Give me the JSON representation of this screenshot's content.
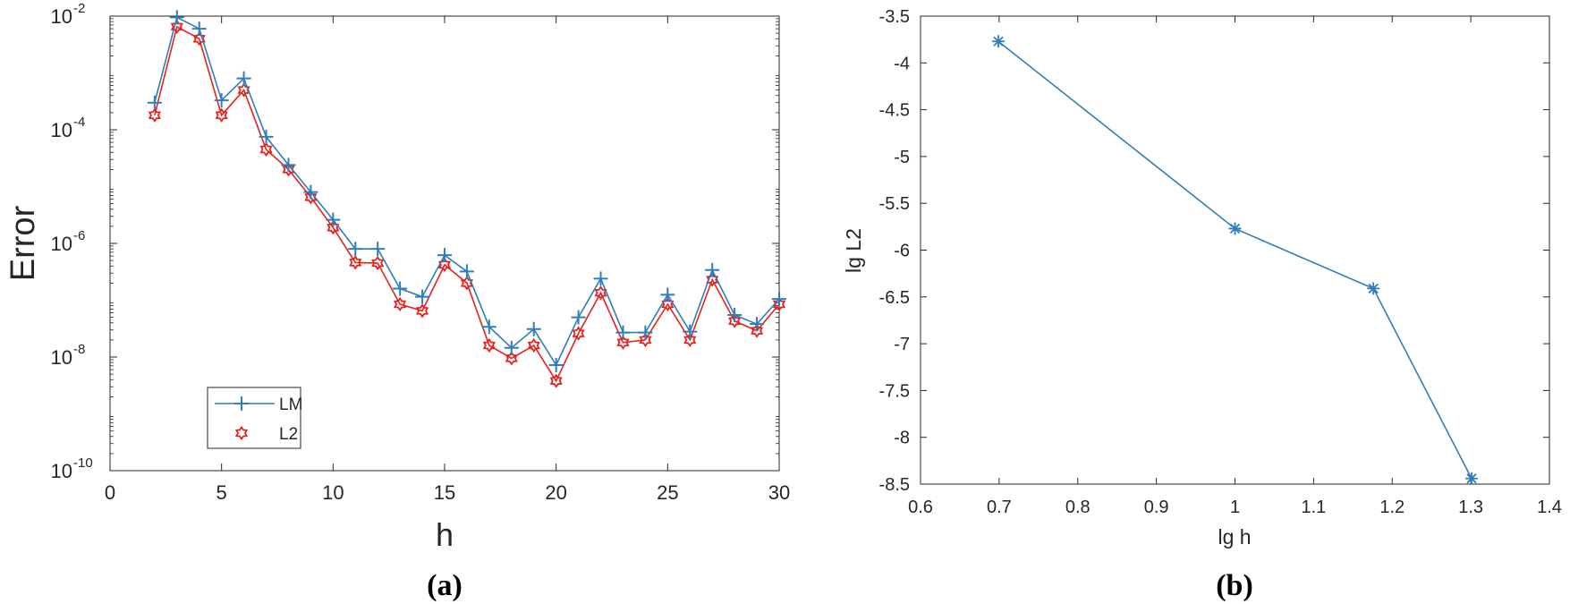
{
  "chart_data": [
    {
      "type": "line",
      "panel_label": "a",
      "title": "",
      "xlabel": "h",
      "ylabel": "Error",
      "xlim": [
        0,
        30
      ],
      "ylim": [
        1e-10,
        0.01
      ],
      "yscale": "log",
      "xticks": [
        0,
        5,
        10,
        15,
        20,
        25,
        30
      ],
      "yticks": [
        {
          "value": 1e-10,
          "base": "10",
          "exp": "-10"
        },
        {
          "value": 1e-08,
          "base": "10",
          "exp": "-8"
        },
        {
          "value": 1e-06,
          "base": "10",
          "exp": "-6"
        },
        {
          "value": 0.0001,
          "base": "10",
          "exp": "-4"
        },
        {
          "value": 0.01,
          "base": "10",
          "exp": "-2"
        }
      ],
      "grid": false,
      "legend_position": "bottom-left",
      "x": [
        2,
        3,
        4,
        5,
        6,
        7,
        8,
        9,
        10,
        11,
        12,
        13,
        14,
        15,
        16,
        17,
        18,
        19,
        20,
        21,
        22,
        23,
        24,
        25,
        26,
        27,
        28,
        29,
        30
      ],
      "series": [
        {
          "name": "LM",
          "color": "#2f7ebc",
          "marker": "plus",
          "values": [
            0.0003,
            0.0095,
            0.006,
            0.00033,
            0.0008,
            7.5e-05,
            2.4e-05,
            8e-06,
            2.6e-06,
            8e-07,
            8e-07,
            1.6e-07,
            1.15e-07,
            6.2e-07,
            3.2e-07,
            3.4e-08,
            1.45e-08,
            3.1e-08,
            7.2e-09,
            5e-08,
            2.4e-07,
            2.7e-08,
            2.7e-08,
            1.25e-07,
            2.8e-08,
            3.4e-07,
            5.5e-08,
            3.8e-08,
            1.05e-07
          ]
        },
        {
          "name": "L2",
          "color": "#e8201a",
          "marker": "hexagram",
          "values": [
            0.00018,
            0.0065,
            0.004,
            0.00018,
            0.0005,
            4.5e-05,
            2e-05,
            6.5e-06,
            1.9e-06,
            4.6e-07,
            4.5e-07,
            8.5e-08,
            6.5e-08,
            4.2e-07,
            2e-07,
            1.6e-08,
            9.5e-09,
            1.6e-08,
            3.8e-09,
            2.6e-08,
            1.35e-07,
            1.8e-08,
            2e-08,
            8.5e-08,
            2e-08,
            2.3e-07,
            4.3e-08,
            2.9e-08,
            8.5e-08
          ]
        }
      ]
    },
    {
      "type": "line",
      "panel_label": "b",
      "title": "",
      "xlabel": "lg h",
      "ylabel": "lg L2",
      "xlim": [
        0.6,
        1.4
      ],
      "ylim": [
        -8.5,
        -3.5
      ],
      "xticks": [
        "0.6",
        "0.7",
        "0.8",
        "0.9",
        "1",
        "1.1",
        "1.2",
        "1.3",
        "1.4"
      ],
      "yticks": [
        "-8.5",
        "-8",
        "-7.5",
        "-7",
        "-6.5",
        "-6",
        "-5.5",
        "-5",
        "-4.5",
        "-4",
        "-3.5"
      ],
      "grid": false,
      "series": [
        {
          "color": "#2f7ebc",
          "marker": "asterisk",
          "x": [
            0.699,
            1.0,
            1.176,
            1.301
          ],
          "values": [
            -3.77,
            -5.77,
            -6.41,
            -8.44
          ]
        }
      ]
    }
  ],
  "labels": {
    "panel_a": "(a)",
    "panel_b": "(b)"
  }
}
